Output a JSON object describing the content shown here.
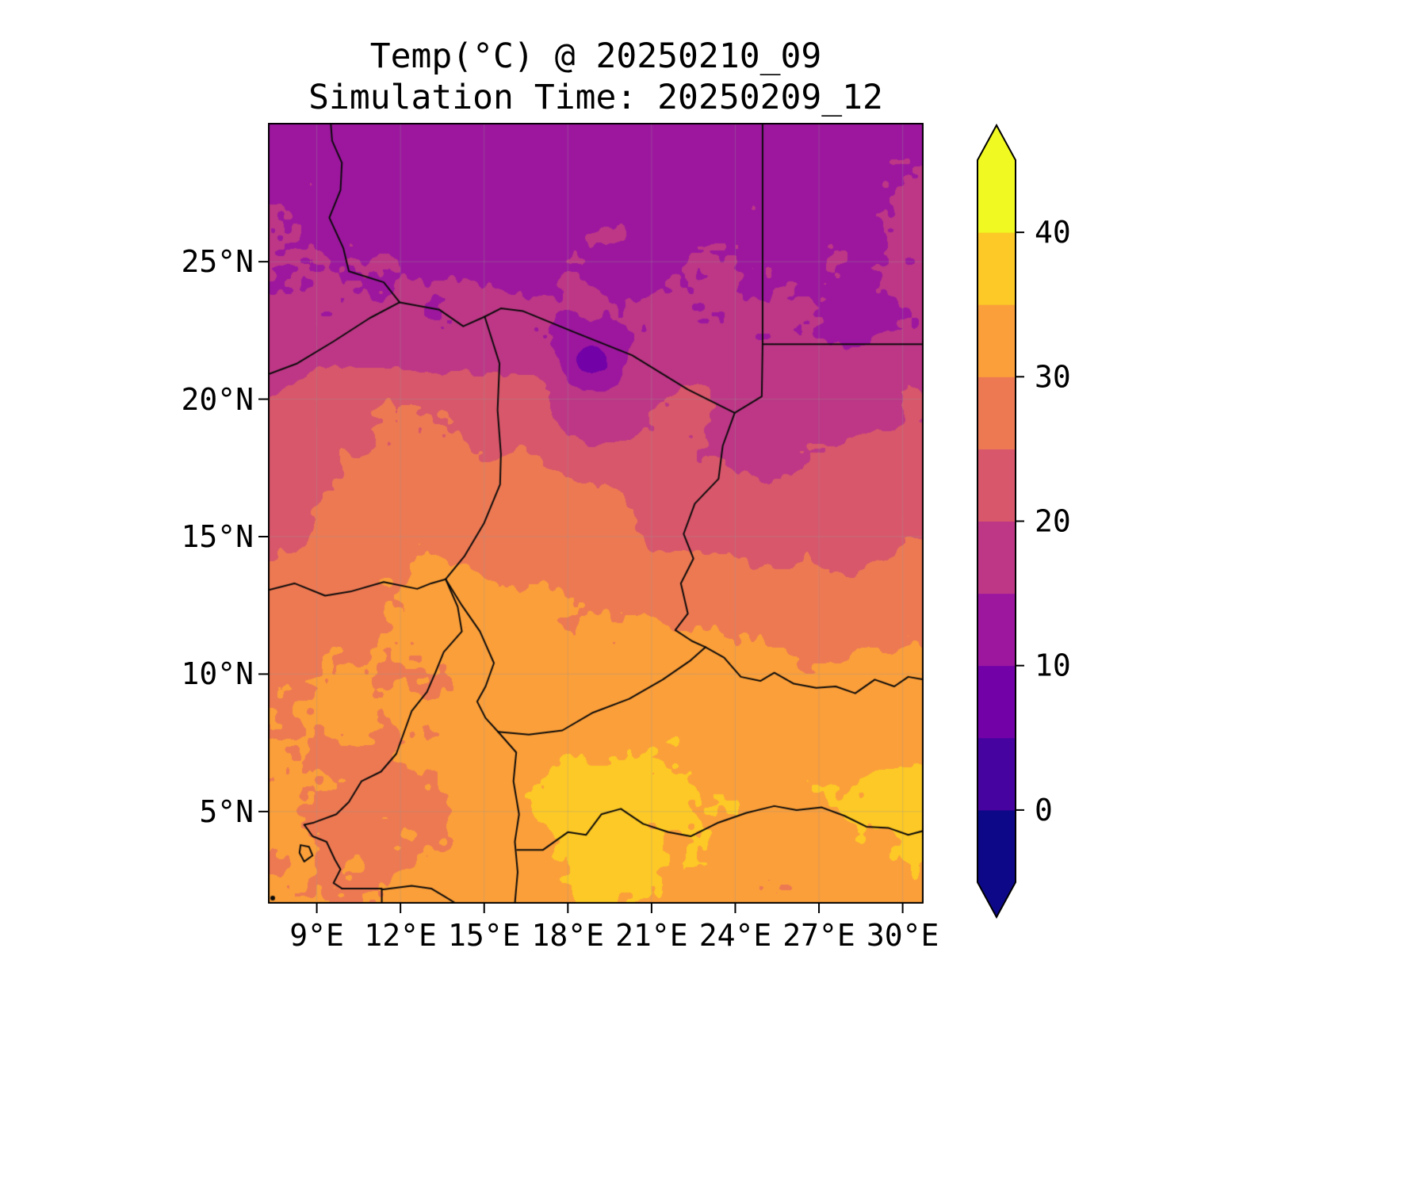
{
  "title": {
    "line1": "Temp(°C) @ 20250210_09",
    "line2": "Simulation Time: 20250209_12"
  },
  "colors": {
    "background": "#ffffff",
    "border_line": "#000000",
    "gridline": "#999999",
    "tick": "#000000"
  },
  "chart_data": {
    "type": "heatmap",
    "title": "Temp(°C) @ 20250210_09",
    "subtitle": "Simulation Time: 20250209_12",
    "variable": "Temperature",
    "units": "°C",
    "extent": {
      "lon_min": 7.25,
      "lon_max": 30.75,
      "lat_min": 1.65,
      "lat_max": 30.05
    },
    "grid_lons": [
      7.25,
      10.19,
      13.13,
      16.06,
      19.0,
      21.94,
      24.88,
      27.81,
      30.75
    ],
    "grid_lats": [
      30.05,
      26.5,
      22.95,
      19.4,
      15.85,
      12.3,
      8.75,
      5.2,
      1.65
    ],
    "values": [
      [
        13,
        13,
        12,
        12,
        12,
        13,
        13,
        13,
        14
      ],
      [
        15,
        14,
        13,
        13,
        14,
        15,
        14,
        14,
        15
      ],
      [
        17,
        17,
        15,
        14,
        15,
        16,
        15,
        15,
        16
      ],
      [
        21,
        25,
        26,
        23,
        18,
        20,
        18,
        19,
        21
      ],
      [
        23,
        26,
        28,
        28,
        26,
        24,
        22,
        23,
        25
      ],
      [
        26,
        29,
        31,
        31,
        30,
        29,
        28,
        27,
        28
      ],
      [
        29,
        31,
        31,
        33,
        34,
        34,
        31,
        31,
        33
      ],
      [
        30,
        28,
        30,
        33,
        37,
        36,
        33,
        34,
        36
      ],
      [
        30,
        30,
        31,
        32,
        34,
        33,
        32,
        32,
        33
      ]
    ],
    "anomalies": [
      {
        "lon": 18.9,
        "lat": 21.4,
        "amp": -7,
        "radius": 0.7
      }
    ],
    "levels": [
      -5,
      0,
      5,
      10,
      15,
      20,
      25,
      30,
      35,
      40,
      45
    ],
    "palette": [
      "#0d0887",
      "#46039f",
      "#7201a8",
      "#9c179e",
      "#bd3786",
      "#d8576b",
      "#ed7953",
      "#fb9f3a",
      "#fdc926",
      "#f0f921"
    ],
    "colorbar": {
      "vmin": -5,
      "vmax": 45,
      "extend": "both",
      "ticks": [
        {
          "value": 0,
          "label": "0"
        },
        {
          "value": 10,
          "label": "10"
        },
        {
          "value": 20,
          "label": "20"
        },
        {
          "value": 30,
          "label": "30"
        },
        {
          "value": 40,
          "label": "40"
        }
      ]
    },
    "x_ticks": [
      {
        "value": 9,
        "label": "9°E"
      },
      {
        "value": 12,
        "label": "12°E"
      },
      {
        "value": 15,
        "label": "15°E"
      },
      {
        "value": 18,
        "label": "18°E"
      },
      {
        "value": 21,
        "label": "21°E"
      },
      {
        "value": 24,
        "label": "24°E"
      },
      {
        "value": 27,
        "label": "27°E"
      },
      {
        "value": 30,
        "label": "30°E"
      }
    ],
    "y_ticks": [
      {
        "value": 5,
        "label": "5°N"
      },
      {
        "value": 10,
        "label": "10°N"
      },
      {
        "value": 15,
        "label": "15°N"
      },
      {
        "value": 20,
        "label": "20°N"
      },
      {
        "value": 25,
        "label": "25°N"
      }
    ]
  }
}
